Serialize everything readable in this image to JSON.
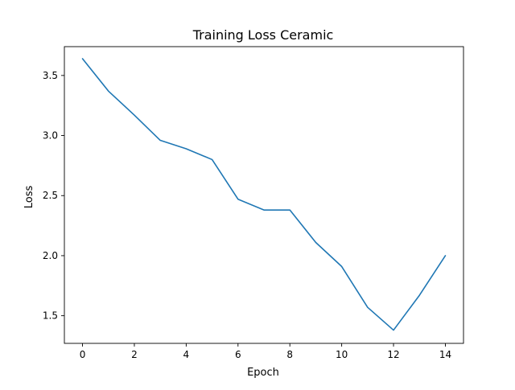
{
  "chart_data": {
    "type": "line",
    "title": "Training Loss Ceramic",
    "xlabel": "Epoch",
    "ylabel": "Loss",
    "x": [
      0,
      1,
      2,
      3,
      4,
      5,
      6,
      7,
      8,
      9,
      10,
      11,
      12,
      13,
      14
    ],
    "series": [
      {
        "name": "",
        "color": "#1f77b4",
        "values": [
          3.64,
          3.37,
          3.17,
          2.96,
          2.89,
          2.8,
          2.47,
          2.38,
          2.38,
          2.11,
          1.91,
          1.57,
          1.38,
          1.67,
          2.0
        ]
      }
    ],
    "xlim": [
      -0.7,
      14.7
    ],
    "ylim": [
      1.27,
      3.74
    ],
    "xticks": [
      0,
      2,
      4,
      6,
      8,
      10,
      12,
      14
    ],
    "yticks": [
      1.5,
      2.0,
      2.5,
      3.0,
      3.5
    ],
    "xtick_labels": [
      "0",
      "2",
      "4",
      "6",
      "8",
      "10",
      "12",
      "14"
    ],
    "ytick_labels": [
      "1.5",
      "2.0",
      "2.5",
      "3.0",
      "3.5"
    ],
    "grid": false,
    "legend": "none"
  }
}
